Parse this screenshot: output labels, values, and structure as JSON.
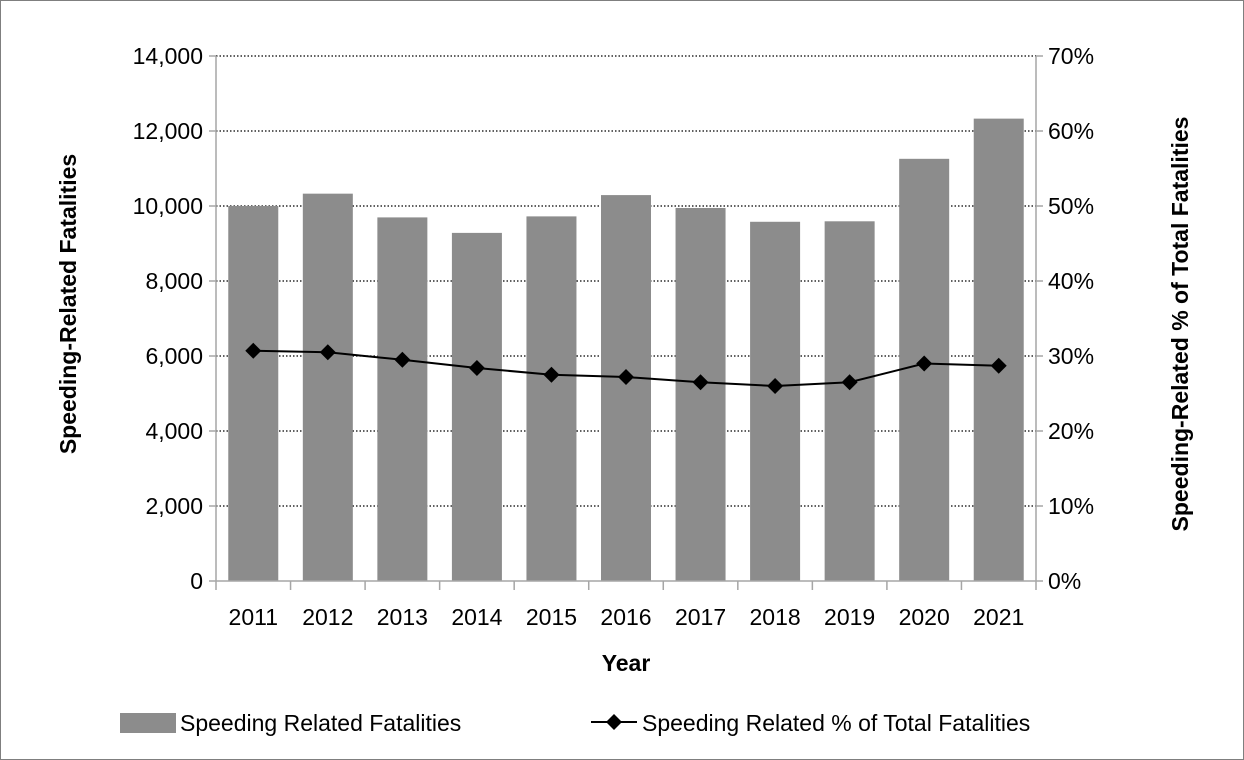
{
  "chart_data": {
    "type": "bar",
    "categories": [
      "2011",
      "2012",
      "2013",
      "2014",
      "2015",
      "2016",
      "2017",
      "2018",
      "2019",
      "2020",
      "2021"
    ],
    "xlabel": "Year",
    "ylabel": "Speeding-Related Fatalities",
    "y2label": "Speeding-Related % of Total Fatalities",
    "ylim": [
      0,
      14000
    ],
    "y2lim": [
      0,
      0.7
    ],
    "yticks": [
      "0",
      "2,000",
      "4,000",
      "6,000",
      "8,000",
      "10,000",
      "12,000",
      "14,000"
    ],
    "y2ticks": [
      "0%",
      "10%",
      "20%",
      "30%",
      "40%",
      "50%",
      "60%",
      "70%"
    ],
    "grid": true,
    "legend_position": "bottom",
    "series": [
      {
        "name": "Speeding Related Fatalities",
        "type": "bar",
        "axis": "left",
        "color": "#8c8c8c",
        "values": [
          10001,
          10329,
          9696,
          9283,
          9723,
          10291,
          9947,
          9579,
          9592,
          11258,
          12330
        ]
      },
      {
        "name": "Speeding Related % of Total Fatalities",
        "type": "line",
        "axis": "right",
        "color": "#000000",
        "marker": "diamond",
        "values": [
          0.307,
          0.305,
          0.295,
          0.284,
          0.275,
          0.272,
          0.265,
          0.26,
          0.265,
          0.29,
          0.287
        ]
      }
    ]
  }
}
